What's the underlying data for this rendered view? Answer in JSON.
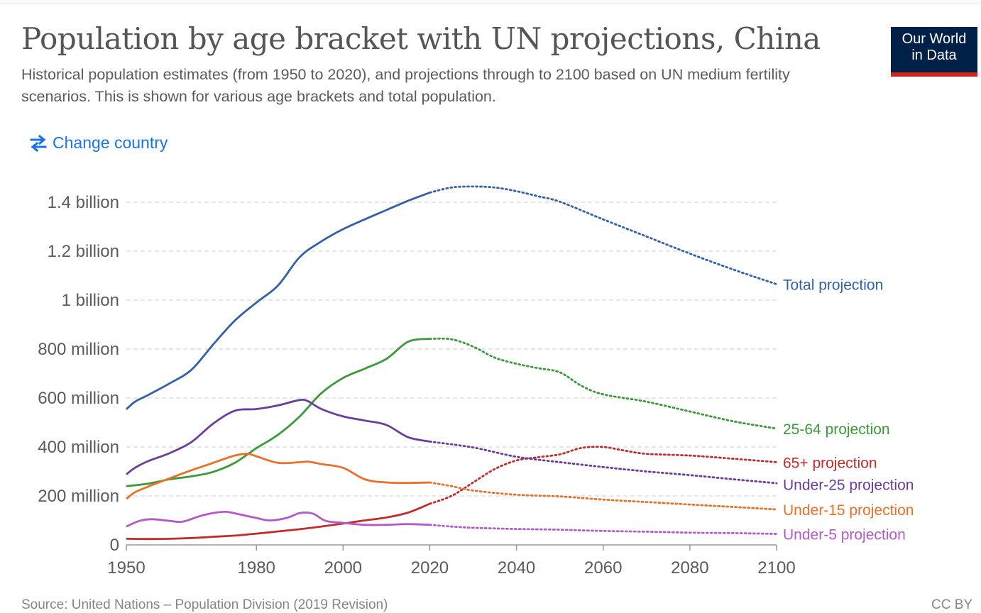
{
  "header": {
    "title": "Population by age bracket with UN projections, China",
    "subtitle": "Historical population estimates (from 1950 to 2020), and projections through to 2100 based on UN medium fertility scenarios. This is shown for various age brackets and total population.",
    "logo_line1": "Our World",
    "logo_line2": "in Data",
    "change_country": "Change country",
    "icons": {
      "change_country": "swap-arrows-icon"
    }
  },
  "footer": {
    "source": "Source: United Nations – Population Division (2019 Revision)",
    "license": "CC BY"
  },
  "colors": {
    "logo_bg": "#002147",
    "logo_accent": "#ce261e",
    "link": "#1a73e8"
  },
  "chart_data": {
    "type": "line",
    "xlim": [
      1950,
      2100
    ],
    "ylim": [
      0,
      1400000000
    ],
    "grid": "horizontal dashed",
    "legend": "inline labels at right end of lines",
    "projection_start": 2020,
    "x_ticks": [
      {
        "value": 1950,
        "label": "1950"
      },
      {
        "value": 1980,
        "label": "1980"
      },
      {
        "value": 2000,
        "label": "2000"
      },
      {
        "value": 2020,
        "label": "2020"
      },
      {
        "value": 2040,
        "label": "2040"
      },
      {
        "value": 2060,
        "label": "2060"
      },
      {
        "value": 2080,
        "label": "2080"
      },
      {
        "value": 2100,
        "label": "2100"
      }
    ],
    "y_ticks": [
      {
        "value": 0,
        "label": "0"
      },
      {
        "value": 200000000,
        "label": "200 million"
      },
      {
        "value": 400000000,
        "label": "400 million"
      },
      {
        "value": 600000000,
        "label": "600 million"
      },
      {
        "value": 800000000,
        "label": "800 million"
      },
      {
        "value": 1000000000,
        "label": "1 billion"
      },
      {
        "value": 1200000000,
        "label": "1.2 billion"
      },
      {
        "value": 1400000000,
        "label": "1.4 billion"
      }
    ],
    "series": [
      {
        "name": "Total projection",
        "color": "#3360a9",
        "points": [
          [
            1950,
            554000000.0
          ],
          [
            1952,
            585000000.0
          ],
          [
            1955,
            612000000.0
          ],
          [
            1960,
            660000000.0
          ],
          [
            1965,
            715000000.0
          ],
          [
            1970,
            818000000.0
          ],
          [
            1975,
            916000000.0
          ],
          [
            1980,
            990000000.0
          ],
          [
            1985,
            1060000000.0
          ],
          [
            1990,
            1176000000.0
          ],
          [
            1995,
            1240000000.0
          ],
          [
            2000,
            1290000000.0
          ],
          [
            2005,
            1330000000.0
          ],
          [
            2010,
            1368000000.0
          ],
          [
            2015,
            1406000000.0
          ],
          [
            2020,
            1439000000.0
          ],
          [
            2025,
            1460000000.0
          ],
          [
            2030,
            1464000000.0
          ],
          [
            2035,
            1460000000.0
          ],
          [
            2040,
            1445000000.0
          ],
          [
            2045,
            1424000000.0
          ],
          [
            2050,
            1402000000.0
          ],
          [
            2060,
            1330000000.0
          ],
          [
            2070,
            1260000000.0
          ],
          [
            2080,
            1190000000.0
          ],
          [
            2090,
            1125000000.0
          ],
          [
            2100,
            1065000000.0
          ]
        ]
      },
      {
        "name": "25-64 projection",
        "color": "#3a9a3a",
        "points": [
          [
            1950,
            240000000.0
          ],
          [
            1955,
            250000000.0
          ],
          [
            1960,
            268000000.0
          ],
          [
            1965,
            280000000.0
          ],
          [
            1970,
            298000000.0
          ],
          [
            1975,
            335000000.0
          ],
          [
            1980,
            395000000.0
          ],
          [
            1985,
            450000000.0
          ],
          [
            1990,
            525000000.0
          ],
          [
            1995,
            620000000.0
          ],
          [
            2000,
            682000000.0
          ],
          [
            2005,
            720000000.0
          ],
          [
            2010,
            760000000.0
          ],
          [
            2015,
            830000000.0
          ],
          [
            2020,
            842000000.0
          ],
          [
            2025,
            840000000.0
          ],
          [
            2030,
            810000000.0
          ],
          [
            2035,
            765000000.0
          ],
          [
            2040,
            740000000.0
          ],
          [
            2045,
            722000000.0
          ],
          [
            2050,
            705000000.0
          ],
          [
            2055,
            650000000.0
          ],
          [
            2060,
            615000000.0
          ],
          [
            2070,
            585000000.0
          ],
          [
            2080,
            545000000.0
          ],
          [
            2090,
            505000000.0
          ],
          [
            2100,
            475000000.0
          ]
        ]
      },
      {
        "name": "65+ projection",
        "color": "#c12c2c",
        "points": [
          [
            1950,
            25000000.0
          ],
          [
            1955,
            24000000.0
          ],
          [
            1960,
            25000000.0
          ],
          [
            1965,
            28000000.0
          ],
          [
            1970,
            33000000.0
          ],
          [
            1975,
            38000000.0
          ],
          [
            1980,
            46000000.0
          ],
          [
            1985,
            55000000.0
          ],
          [
            1990,
            64000000.0
          ],
          [
            1995,
            75000000.0
          ],
          [
            2000,
            87000000.0
          ],
          [
            2005,
            100000000.0
          ],
          [
            2010,
            112000000.0
          ],
          [
            2015,
            132000000.0
          ],
          [
            2020,
            168000000.0
          ],
          [
            2025,
            200000000.0
          ],
          [
            2030,
            255000000.0
          ],
          [
            2035,
            310000000.0
          ],
          [
            2040,
            345000000.0
          ],
          [
            2045,
            358000000.0
          ],
          [
            2050,
            370000000.0
          ],
          [
            2055,
            396000000.0
          ],
          [
            2060,
            400000000.0
          ],
          [
            2065,
            385000000.0
          ],
          [
            2070,
            372000000.0
          ],
          [
            2080,
            365000000.0
          ],
          [
            2090,
            352000000.0
          ],
          [
            2100,
            338000000.0
          ]
        ]
      },
      {
        "name": "Under-25 projection",
        "color": "#6a3d9a",
        "points": [
          [
            1950,
            288000000.0
          ],
          [
            1952,
            315000000.0
          ],
          [
            1955,
            342000000.0
          ],
          [
            1960,
            375000000.0
          ],
          [
            1965,
            420000000.0
          ],
          [
            1970,
            495000000.0
          ],
          [
            1975,
            548000000.0
          ],
          [
            1980,
            555000000.0
          ],
          [
            1985,
            570000000.0
          ],
          [
            1990,
            592000000.0
          ],
          [
            1992,
            586000000.0
          ],
          [
            1995,
            555000000.0
          ],
          [
            2000,
            525000000.0
          ],
          [
            2005,
            508000000.0
          ],
          [
            2010,
            490000000.0
          ],
          [
            2015,
            440000000.0
          ],
          [
            2020,
            422000000.0
          ],
          [
            2030,
            398000000.0
          ],
          [
            2040,
            360000000.0
          ],
          [
            2050,
            338000000.0
          ],
          [
            2060,
            318000000.0
          ],
          [
            2070,
            300000000.0
          ],
          [
            2080,
            285000000.0
          ],
          [
            2090,
            268000000.0
          ],
          [
            2100,
            252000000.0
          ]
        ]
      },
      {
        "name": "Under-15 projection",
        "color": "#e8702a",
        "points": [
          [
            1950,
            188000000.0
          ],
          [
            1952,
            215000000.0
          ],
          [
            1955,
            238000000.0
          ],
          [
            1960,
            272000000.0
          ],
          [
            1965,
            305000000.0
          ],
          [
            1970,
            335000000.0
          ],
          [
            1975,
            365000000.0
          ],
          [
            1978,
            372000000.0
          ],
          [
            1980,
            362000000.0
          ],
          [
            1985,
            335000000.0
          ],
          [
            1990,
            338000000.0
          ],
          [
            1992,
            340000000.0
          ],
          [
            1995,
            330000000.0
          ],
          [
            2000,
            315000000.0
          ],
          [
            2005,
            268000000.0
          ],
          [
            2010,
            255000000.0
          ],
          [
            2015,
            253000000.0
          ],
          [
            2020,
            255000000.0
          ],
          [
            2025,
            240000000.0
          ],
          [
            2030,
            222000000.0
          ],
          [
            2040,
            205000000.0
          ],
          [
            2050,
            198000000.0
          ],
          [
            2060,
            185000000.0
          ],
          [
            2070,
            175000000.0
          ],
          [
            2080,
            165000000.0
          ],
          [
            2090,
            155000000.0
          ],
          [
            2100,
            145000000.0
          ]
        ]
      },
      {
        "name": "Under-5 projection",
        "color": "#b15ac8",
        "points": [
          [
            1950,
            75000000.0
          ],
          [
            1953,
            98000000.0
          ],
          [
            1956,
            105000000.0
          ],
          [
            1960,
            98000000.0
          ],
          [
            1963,
            95000000.0
          ],
          [
            1967,
            118000000.0
          ],
          [
            1970,
            130000000.0
          ],
          [
            1973,
            135000000.0
          ],
          [
            1976,
            125000000.0
          ],
          [
            1980,
            110000000.0
          ],
          [
            1983,
            100000000.0
          ],
          [
            1987,
            110000000.0
          ],
          [
            1990,
            130000000.0
          ],
          [
            1993,
            128000000.0
          ],
          [
            1996,
            98000000.0
          ],
          [
            2000,
            90000000.0
          ],
          [
            2005,
            82000000.0
          ],
          [
            2010,
            82000000.0
          ],
          [
            2015,
            85000000.0
          ],
          [
            2020,
            82000000.0
          ],
          [
            2025,
            75000000.0
          ],
          [
            2030,
            70000000.0
          ],
          [
            2040,
            65000000.0
          ],
          [
            2050,
            62000000.0
          ],
          [
            2060,
            57000000.0
          ],
          [
            2070,
            54000000.0
          ],
          [
            2080,
            50000000.0
          ],
          [
            2090,
            48000000.0
          ],
          [
            2100,
            45000000.0
          ]
        ]
      }
    ]
  }
}
